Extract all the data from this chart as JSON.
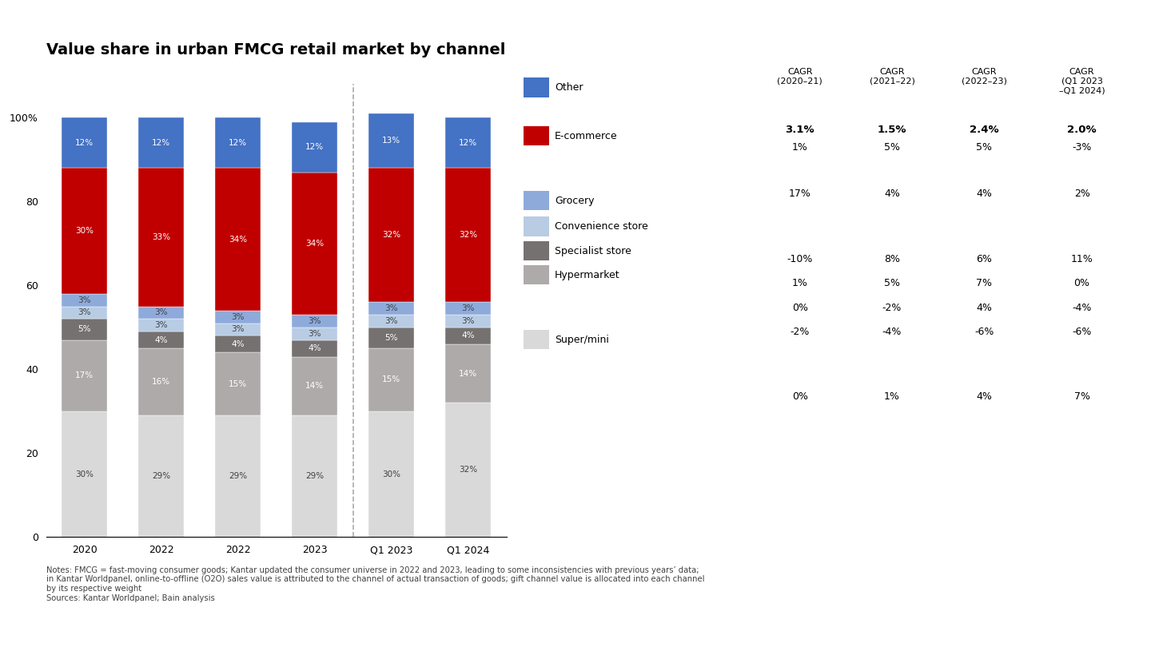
{
  "title": "Value share in urban FMCG retail market by channel",
  "categories": [
    "2020",
    "2022",
    "2022",
    "2023",
    "Q1 2023",
    "Q1 2024"
  ],
  "segments": [
    {
      "label": "Super/mini",
      "color": "#d9d9d9",
      "values": [
        30,
        29,
        29,
        29,
        30,
        32
      ]
    },
    {
      "label": "Hypermarket",
      "color": "#aeaaaa",
      "values": [
        17,
        16,
        15,
        14,
        15,
        14
      ]
    },
    {
      "label": "Specialist store",
      "color": "#757171",
      "values": [
        5,
        4,
        4,
        4,
        5,
        4
      ]
    },
    {
      "label": "Convenience store",
      "color": "#b8cce4",
      "values": [
        3,
        3,
        3,
        3,
        3,
        3
      ]
    },
    {
      "label": "Grocery",
      "color": "#8eaadb",
      "values": [
        3,
        3,
        3,
        3,
        3,
        3
      ]
    },
    {
      "label": "E-commerce",
      "color": "#c00000",
      "values": [
        30,
        33,
        34,
        34,
        32,
        32
      ]
    },
    {
      "label": "Other",
      "color": "#4472c4",
      "values": [
        12,
        12,
        12,
        12,
        13,
        12
      ]
    }
  ],
  "legend_entries": [
    {
      "label": "Other",
      "color": "#4472c4"
    },
    {
      "label": "E-commerce",
      "color": "#c00000"
    },
    {
      "label": "Grocery",
      "color": "#8eaadb"
    },
    {
      "label": "Convenience store",
      "color": "#b8cce4"
    },
    {
      "label": "Specialist store",
      "color": "#757171"
    },
    {
      "label": "Hypermarket",
      "color": "#aeaaaa"
    },
    {
      "label": "Super/mini",
      "color": "#d9d9d9"
    }
  ],
  "cagr_headers": [
    "CAGR\n(2020–21)",
    "CAGR\n(2021–22)",
    "CAGR\n(2022–23)",
    "CAGR\n(Q1 2023\n–Q1 2024)"
  ],
  "cagr_totals": [
    "3.1%",
    "1.5%",
    "2.4%",
    "2.0%"
  ],
  "cagr_data": [
    [
      "1%",
      "5%",
      "5%",
      "-3%"
    ],
    [
      "17%",
      "4%",
      "4%",
      "2%"
    ],
    [
      "-10%",
      "8%",
      "6%",
      "11%"
    ],
    [
      "1%",
      "5%",
      "7%",
      "0%"
    ],
    [
      "0%",
      "-2%",
      "4%",
      "-4%"
    ],
    [
      "-2%",
      "-4%",
      "-6%",
      "-6%"
    ],
    [
      "0%",
      "1%",
      "4%",
      "7%"
    ]
  ],
  "background_color": "#ffffff",
  "notes": "Notes: FMCG = fast-moving consumer goods; Kantar updated the consumer universe in 2022 and 2023, leading to some inconsistencies with previous years’ data;\nin Kantar Worldpanel, online-to-offline (O2O) sales value is attributed to the channel of actual transaction of goods; gift channel value is allocated into each channel\nby its respective weight\nSources: Kantar Worldpanel; Bain analysis"
}
